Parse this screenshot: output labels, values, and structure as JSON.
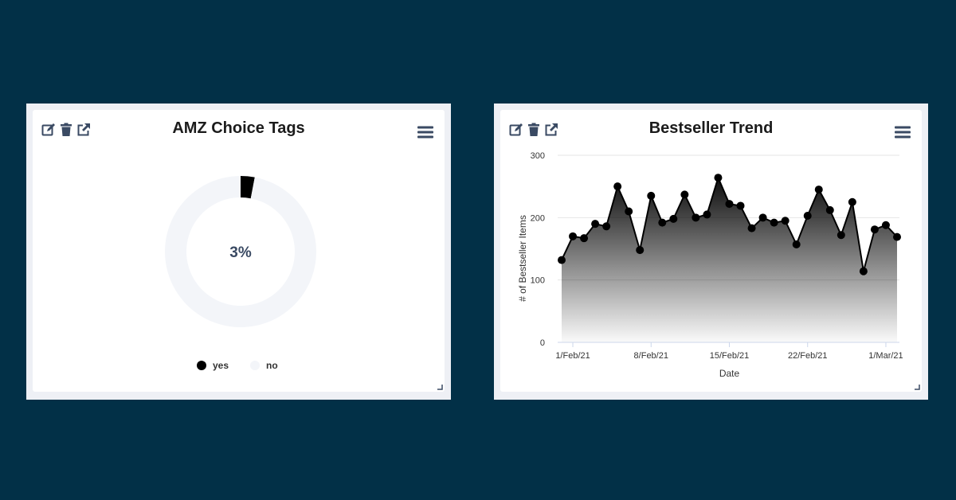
{
  "colors": {
    "background": "#023047",
    "card_frame": "#eef0f5",
    "series": "#000000",
    "no_slice": "#f3f5f9",
    "center_text": "#3a4a63"
  },
  "icons": [
    "edit-icon",
    "trash-icon",
    "external-link-icon",
    "hamburger-menu-icon",
    "resize-handle-icon"
  ],
  "left_card": {
    "title": "AMZ Choice Tags",
    "center_label": "3%"
  },
  "right_card": {
    "title": "Bestseller Trend"
  },
  "chart_data": [
    {
      "type": "pie",
      "donut": true,
      "title": "AMZ Choice Tags",
      "labels": [
        "yes",
        "no"
      ],
      "values": [
        3,
        97
      ],
      "colors": [
        "#000000",
        "#f3f5f9"
      ],
      "center_label": "3%",
      "legend": "bottom"
    },
    {
      "type": "area",
      "title": "Bestseller Trend",
      "xlabel": "Date",
      "ylabel": "# of Bestseller Items",
      "ylim": [
        0,
        300
      ],
      "yticks": [
        0,
        100,
        200,
        300
      ],
      "xticks": [
        "1/Feb/21",
        "8/Feb/21",
        "15/Feb/21",
        "22/Feb/21",
        "1/Mar/21"
      ],
      "grid": true,
      "legend": "none",
      "x": [
        "31/Jan/21",
        "1/Feb/21",
        "2/Feb/21",
        "3/Feb/21",
        "4/Feb/21",
        "5/Feb/21",
        "6/Feb/21",
        "7/Feb/21",
        "8/Feb/21",
        "9/Feb/21",
        "10/Feb/21",
        "11/Feb/21",
        "12/Feb/21",
        "13/Feb/21",
        "14/Feb/21",
        "15/Feb/21",
        "16/Feb/21",
        "17/Feb/21",
        "18/Feb/21",
        "19/Feb/21",
        "20/Feb/21",
        "21/Feb/21",
        "22/Feb/21",
        "23/Feb/21",
        "24/Feb/21",
        "25/Feb/21",
        "26/Feb/21",
        "27/Feb/21",
        "28/Feb/21",
        "1/Mar/21",
        "2/Mar/21"
      ],
      "series": [
        {
          "values": [
            132,
            170,
            167,
            190,
            186,
            250,
            210,
            148,
            235,
            192,
            198,
            237,
            200,
            205,
            264,
            222,
            219,
            183,
            200,
            192,
            195,
            157,
            203,
            245,
            212,
            172,
            225,
            114,
            181,
            188,
            169
          ]
        }
      ]
    }
  ]
}
